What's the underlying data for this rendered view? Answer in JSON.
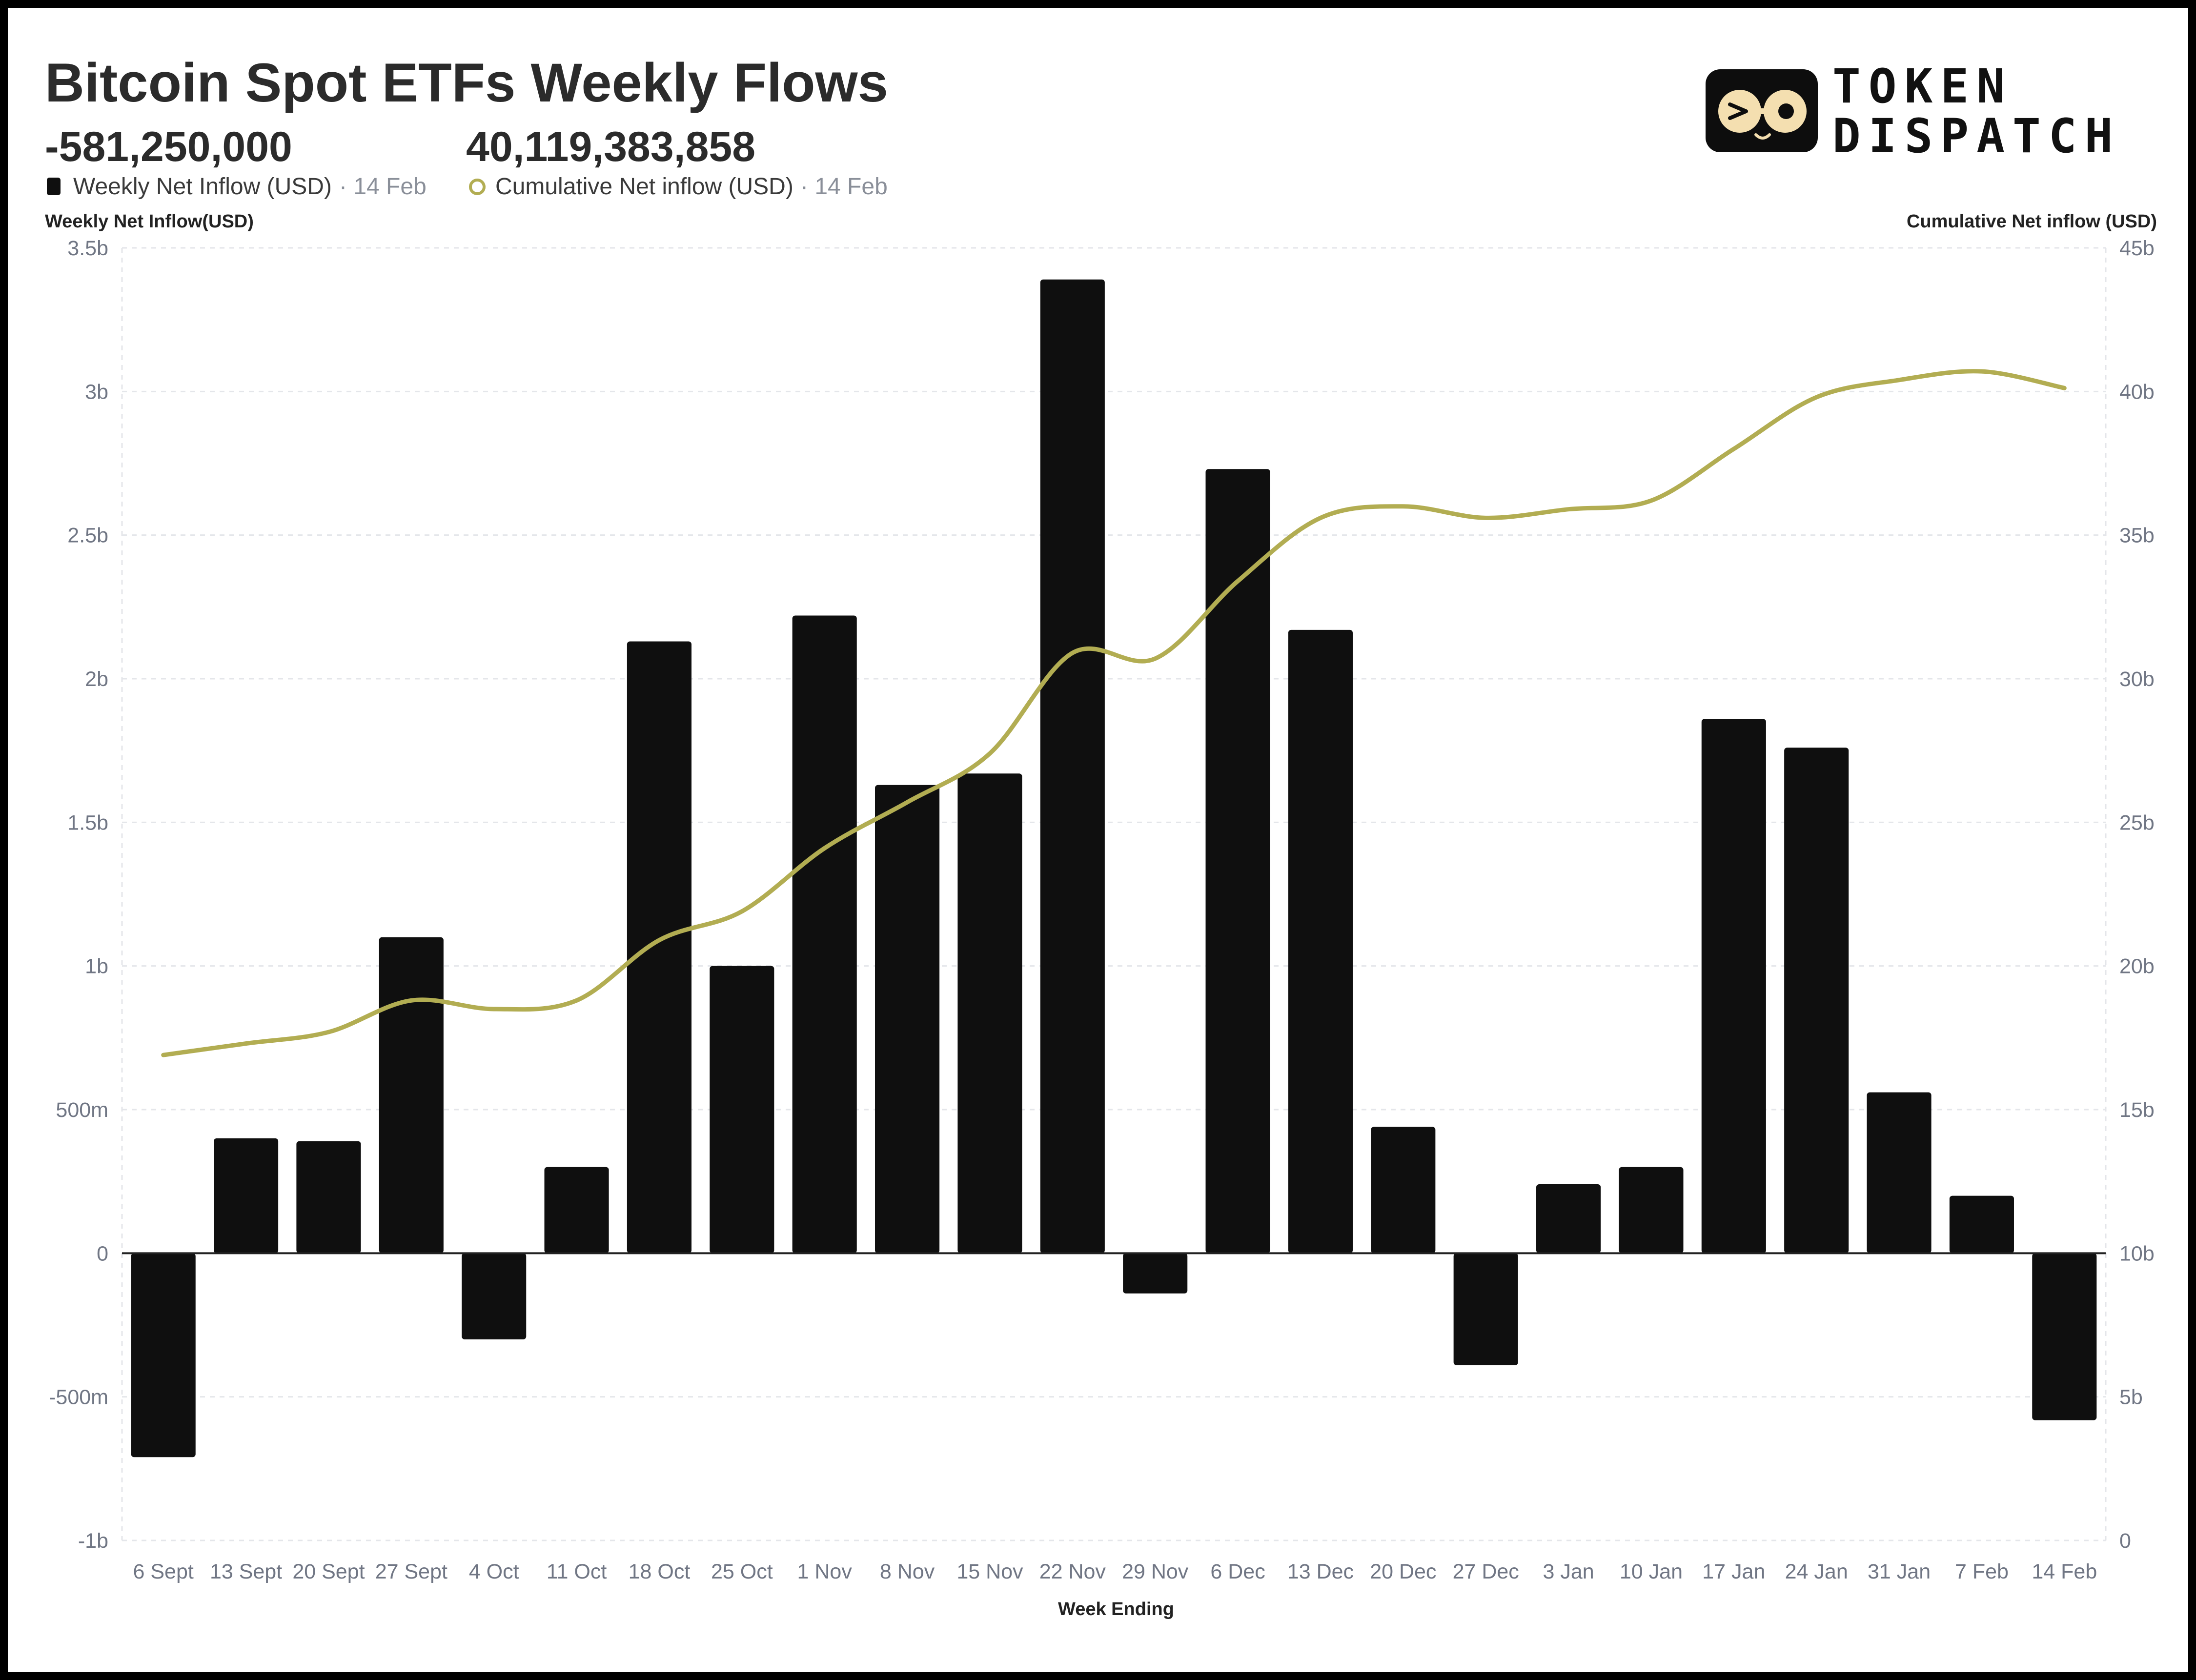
{
  "header": {
    "title": "Bitcoin Spot ETFs Weekly Flows",
    "weekly_value": "-581,250,000",
    "cumulative_value": "40,119,383,858",
    "legend_weekly_label": "Weekly Net Inflow (USD)",
    "legend_weekly_date": "· 14 Feb",
    "legend_cumulative_label": "Cumulative Net inflow (USD)",
    "legend_cumulative_date": "· 14 Feb"
  },
  "logo": {
    "line1": "TOKEN",
    "line2": "DISPATCH",
    "icon": "glasses-face-icon"
  },
  "colors": {
    "bar": "#0f0f0f",
    "line": "#b2ad52",
    "text": "#2b2b2b",
    "muted": "#8a8f99"
  },
  "chart_data": {
    "type": "bar",
    "title": "Bitcoin Spot ETFs Weekly Flows",
    "xlabel": "Week Ending",
    "ylabel_left": "Weekly Net Inflow(USD)",
    "ylabel_right": "Cumulative Net inflow (USD)",
    "legend_placement": "top-left",
    "grid": true,
    "categories": [
      "6 Sept",
      "13 Sept",
      "20 Sept",
      "27 Sept",
      "4 Oct",
      "11 Oct",
      "18 Oct",
      "25 Oct",
      "1 Nov",
      "8 Nov",
      "15 Nov",
      "22 Nov",
      "29 Nov",
      "6 Dec",
      "13 Dec",
      "20 Dec",
      "27 Dec",
      "3 Jan",
      "10 Jan",
      "17 Jan",
      "24 Jan",
      "31 Jan",
      "7 Feb",
      "14 Feb"
    ],
    "ylim_left": [
      -1000000000,
      3500000000
    ],
    "yticks_left": [
      -1000000000,
      -500000000,
      0,
      500000000,
      1000000000,
      1500000000,
      2000000000,
      2500000000,
      3000000000,
      3500000000
    ],
    "yticklabels_left": [
      "-1b",
      "-500m",
      "0",
      "500m",
      "1b",
      "1.5b",
      "2b",
      "2.5b",
      "3b",
      "3.5b"
    ],
    "ylim_right": [
      0,
      45000000000
    ],
    "yticks_right": [
      0,
      5000000000,
      10000000000,
      15000000000,
      20000000000,
      25000000000,
      30000000000,
      35000000000,
      40000000000,
      45000000000
    ],
    "yticklabels_right": [
      "0",
      "5b",
      "10b",
      "15b",
      "20b",
      "25b",
      "30b",
      "35b",
      "40b",
      "45b"
    ],
    "series": [
      {
        "name": "Weekly Net Inflow (USD)",
        "type": "bar",
        "axis": "left",
        "values": [
          -710000000,
          400000000,
          390000000,
          1100000000,
          -300000000,
          300000000,
          2130000000,
          1000000000,
          2220000000,
          1630000000,
          1670000000,
          3390000000,
          -140000000,
          2730000000,
          2170000000,
          440000000,
          -390000000,
          240000000,
          300000000,
          1860000000,
          1760000000,
          560000000,
          200000000,
          -581250000
        ]
      },
      {
        "name": "Cumulative Net inflow (USD)",
        "type": "line",
        "axis": "right",
        "values": [
          16900000000,
          17300000000,
          17700000000,
          18800000000,
          18500000000,
          18800000000,
          20900000000,
          21900000000,
          24100000000,
          25700000000,
          27400000000,
          30900000000,
          30700000000,
          33400000000,
          35600000000,
          36000000000,
          35600000000,
          35900000000,
          36200000000,
          38000000000,
          39800000000,
          40400000000,
          40700000000,
          40119383858
        ]
      }
    ]
  }
}
